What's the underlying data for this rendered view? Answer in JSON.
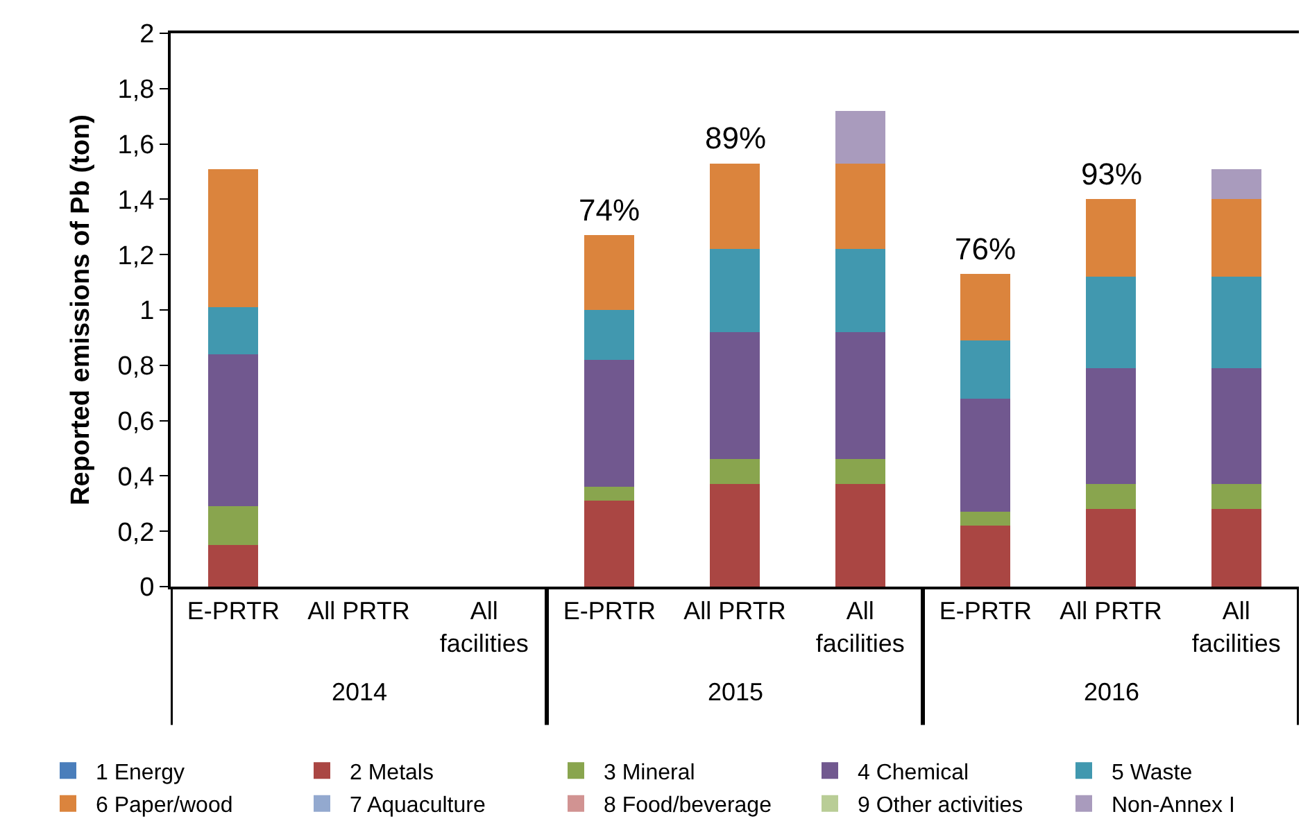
{
  "chart_data": {
    "type": "bar",
    "stacked": true,
    "ylabel": "Reported emissions of Pb (ton)",
    "categories": [
      "E-PRTR",
      "All PRTR",
      "All facilities",
      "E-PRTR",
      "All PRTR",
      "All facilities",
      "E-PRTR",
      "All PRTR",
      "All facilities"
    ],
    "annotations": [
      "2014",
      "2015",
      "2016",
      "74%",
      "89%",
      "76%",
      "93%"
    ],
    "ylim": [
      0,
      2
    ],
    "yticks": [
      0,
      {
        "value": 0.2,
        "label": "0,2"
      },
      {
        "value": 0.4,
        "label": "0,4"
      },
      {
        "value": 0.6,
        "label": "0,6"
      },
      {
        "value": 0.8,
        "label": "0,8"
      },
      1,
      {
        "value": 1.2,
        "label": "1,2"
      },
      {
        "value": 1.4,
        "label": "1,4"
      },
      {
        "value": 1.6,
        "label": "1,6"
      },
      {
        "value": 1.8,
        "label": "1,8"
      },
      2
    ],
    "grid": false,
    "legend": "bottom",
    "series": [
      {
        "name": "1 Energy",
        "color": "#4a7ebb",
        "values": [
          0,
          null,
          null,
          0,
          0,
          0,
          0,
          0,
          0
        ]
      },
      {
        "name": "2 Metals",
        "color": "#aa4643",
        "values": [
          0.15,
          null,
          null,
          0.31,
          0.37,
          0.37,
          0.22,
          0.28,
          0.28
        ]
      },
      {
        "name": "3 Mineral",
        "color": "#89a54e",
        "values": [
          0.14,
          null,
          null,
          0.05,
          0.09,
          0.09,
          0.05,
          0.09,
          0.09
        ]
      },
      {
        "name": "4 Chemical",
        "color": "#71588f",
        "values": [
          0.55,
          null,
          null,
          0.46,
          0.46,
          0.46,
          0.41,
          0.42,
          0.42
        ]
      },
      {
        "name": "5 Waste",
        "color": "#4198af",
        "values": [
          0.17,
          null,
          null,
          0.18,
          0.3,
          0.3,
          0.21,
          0.33,
          0.33
        ]
      },
      {
        "name": "6 Paper/wood",
        "color": "#db843d",
        "values": [
          0.5,
          null,
          null,
          0.27,
          0.31,
          0.31,
          0.24,
          0.28,
          0.28
        ]
      },
      {
        "name": "7 Aquaculture",
        "color": "#93a9cf",
        "values": [
          0,
          null,
          null,
          0,
          0,
          0,
          0,
          0,
          0
        ]
      },
      {
        "name": "8 Food/beverage",
        "color": "#d19392",
        "values": [
          0,
          null,
          null,
          0,
          0,
          0,
          0,
          0,
          0
        ]
      },
      {
        "name": "9 Other activities",
        "color": "#b9cd96",
        "values": [
          0,
          null,
          null,
          0,
          0,
          0,
          0,
          0,
          0
        ]
      },
      {
        "name": "Non-Annex I",
        "color": "#a99bbd",
        "values": [
          0,
          null,
          null,
          0,
          0,
          0.19,
          0,
          0,
          0.11
        ]
      }
    ]
  }
}
